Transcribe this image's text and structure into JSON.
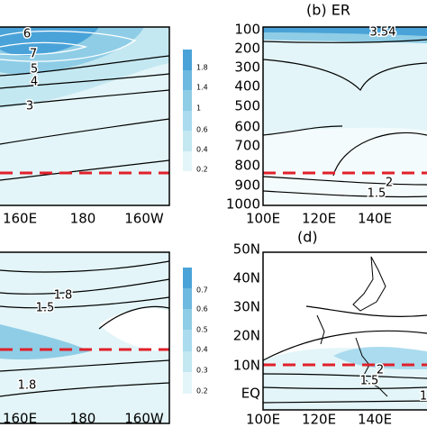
{
  "panels": [
    {
      "x_tick_labels": [
        "160E",
        "180",
        "160W"
      ],
      "contour_labels": [
        "6",
        "7",
        "5",
        "4",
        "3"
      ],
      "colorbar_labels": [
        "1.8",
        "1.4",
        "1",
        "0.6",
        "0.4",
        "0.2"
      ]
    },
    {
      "title": "(b) ER",
      "x_tick_labels": [
        "100E",
        "120E",
        "140E"
      ],
      "y_tick_labels": [
        "100",
        "200",
        "300",
        "400",
        "500",
        "600",
        "700",
        "800",
        "900",
        "1000"
      ],
      "contour_labels": [
        "3.54",
        "2",
        "1.5"
      ]
    },
    {
      "x_tick_labels": [
        "160E",
        "180",
        "160W"
      ],
      "contour_labels": [
        "1.8",
        "1.5",
        "1.8"
      ],
      "colorbar_labels": [
        "0.7",
        "0.6",
        "0.5",
        "0.4",
        "0.3",
        "0.2"
      ]
    },
    {
      "title": "(d)",
      "x_tick_labels": [
        "100E",
        "120E",
        "140E"
      ],
      "y_tick_labels": [
        "50N",
        "40N",
        "30N",
        "20N",
        "10N",
        "EQ"
      ],
      "contour_labels": [
        "2",
        "1.5",
        "1"
      ]
    }
  ]
}
